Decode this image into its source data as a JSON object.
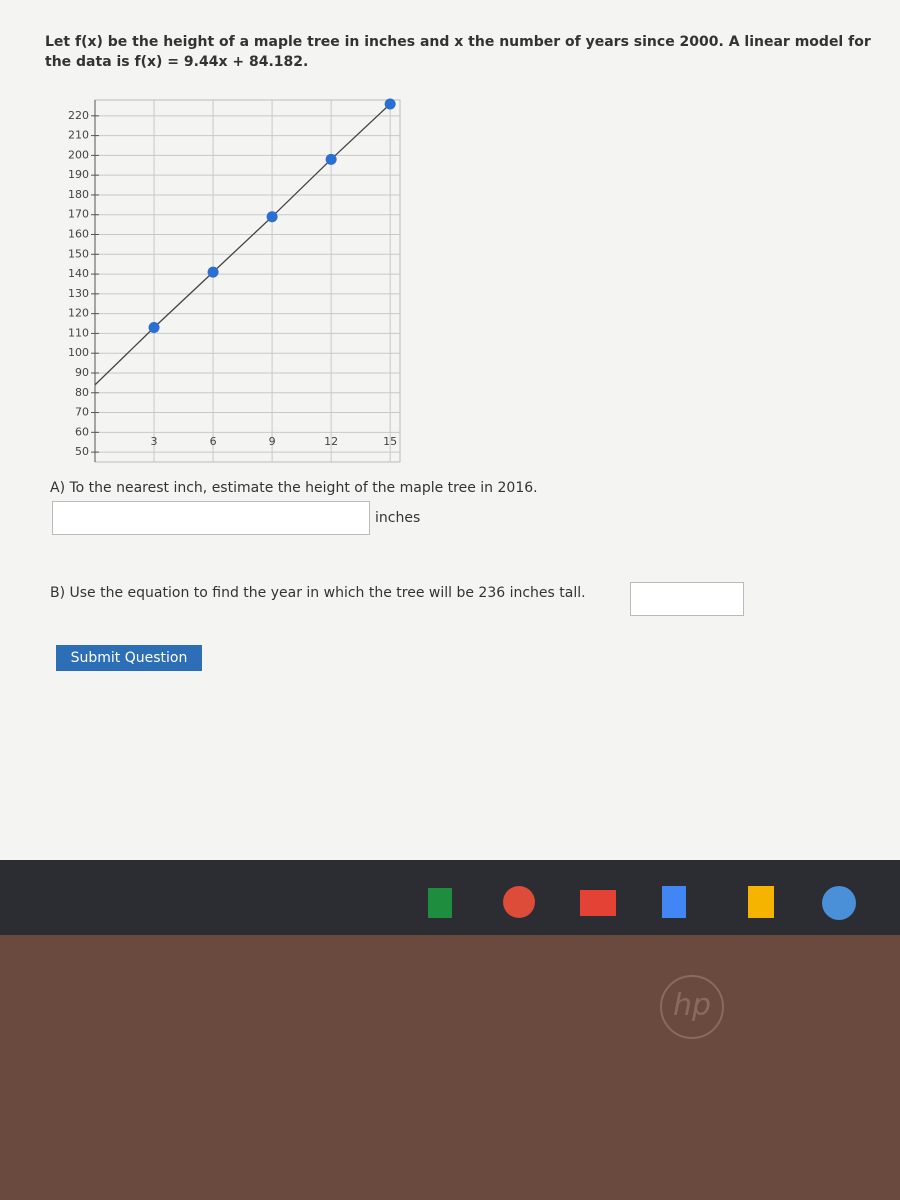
{
  "intro": "Let f(x) be the height of a maple tree in inches and x the number of years since 2000. A linear model for the data is f(x) = 9.44x + 84.182.",
  "chart_data": {
    "type": "line",
    "x": [
      0,
      3,
      6,
      9,
      12,
      15
    ],
    "values": [
      84,
      113,
      141,
      169,
      198,
      226
    ],
    "color": "#2a6fd1",
    "xlim": [
      0,
      15.5
    ],
    "ylim": [
      45,
      228
    ],
    "xticks": [
      3,
      6,
      9,
      12,
      15
    ],
    "yticks": [
      50,
      60,
      70,
      80,
      90,
      100,
      110,
      120,
      130,
      140,
      150,
      160,
      170,
      180,
      190,
      200,
      210,
      220
    ],
    "grid": true
  },
  "question_a": "A) To the nearest inch, estimate the height of the maple tree in 2016.",
  "unit_a": "inches",
  "question_b": "B) Use the equation to find the year in which the tree will be 236 inches tall.",
  "submit": "Submit Question",
  "laptop_logo": "hp"
}
